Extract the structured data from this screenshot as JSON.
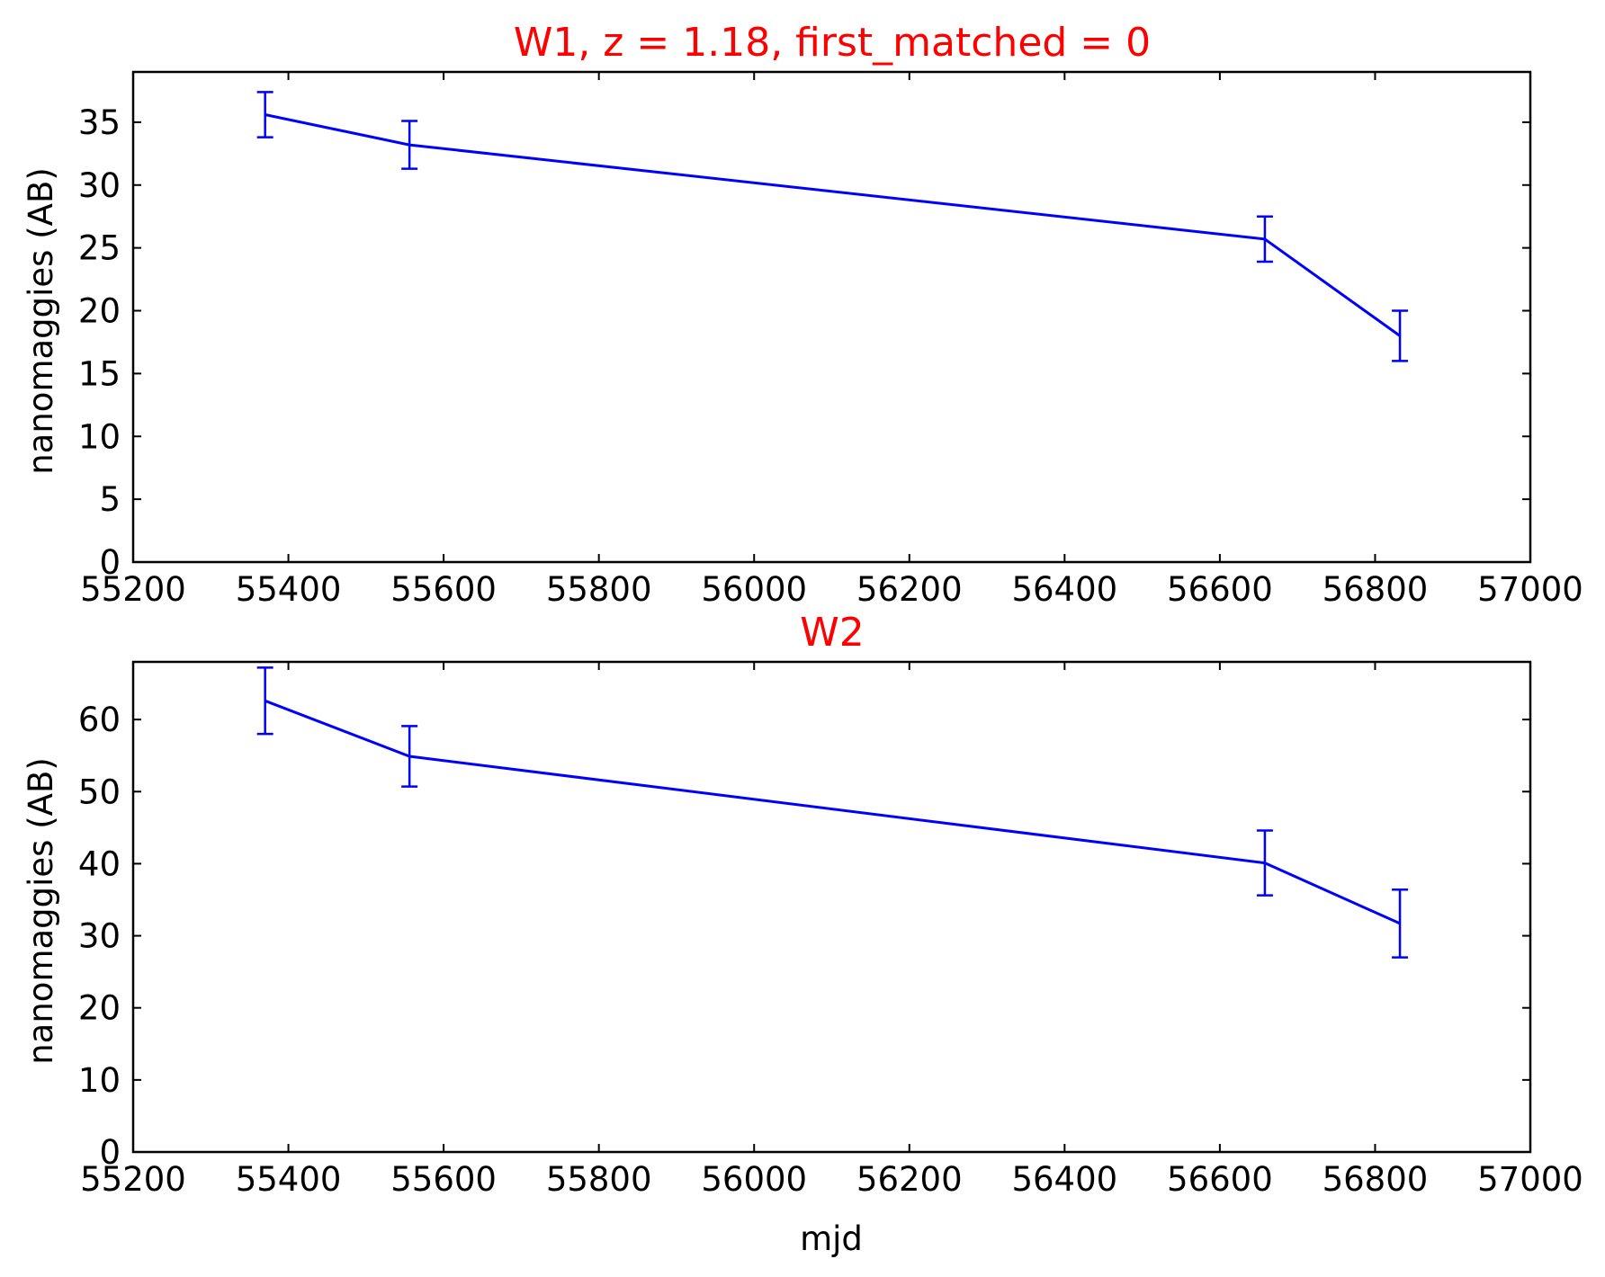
{
  "chart_data": [
    {
      "type": "line",
      "title": "W1, z = 1.18, first_matched = 0",
      "xlabel": "",
      "ylabel": "nanomaggies (AB)",
      "xlim": [
        55200,
        57000
      ],
      "ylim": [
        0,
        39
      ],
      "xticks": [
        55200,
        55400,
        55600,
        55800,
        56000,
        56200,
        56400,
        56600,
        56800,
        57000
      ],
      "yticks": [
        0,
        5,
        10,
        15,
        20,
        25,
        30,
        35
      ],
      "grid": false,
      "series": [
        {
          "color": "#0000ff",
          "x": [
            55370,
            55556,
            56658,
            56832
          ],
          "y": [
            35.6,
            33.2,
            25.7,
            18.0
          ],
          "yerr": [
            1.8,
            1.9,
            1.8,
            2.0
          ]
        }
      ]
    },
    {
      "type": "line",
      "title": "W2",
      "xlabel": "mjd",
      "ylabel": "nanomaggies (AB)",
      "xlim": [
        55200,
        57000
      ],
      "ylim": [
        0,
        68
      ],
      "xticks": [
        55200,
        55400,
        55600,
        55800,
        56000,
        56200,
        56400,
        56600,
        56800,
        57000
      ],
      "yticks": [
        0,
        10,
        20,
        30,
        40,
        50,
        60
      ],
      "grid": false,
      "series": [
        {
          "color": "#0000ff",
          "x": [
            55370,
            55556,
            56658,
            56832
          ],
          "y": [
            62.6,
            54.9,
            40.1,
            31.7
          ],
          "yerr": [
            4.6,
            4.2,
            4.5,
            4.7
          ]
        }
      ]
    }
  ]
}
